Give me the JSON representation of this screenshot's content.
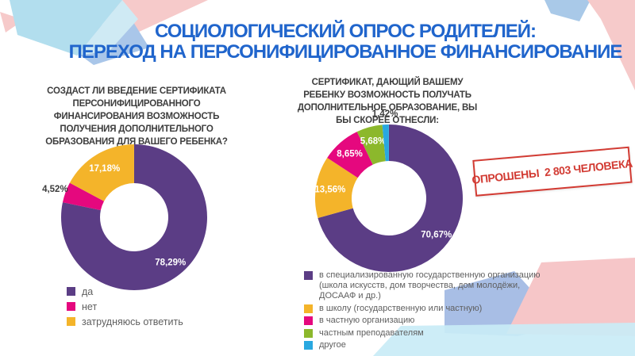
{
  "title": {
    "line1": "СОЦИОЛОГИЧЕСКИЙ ОПРОС РОДИТЕЛЕЙ:",
    "line2": "ПЕРЕХОД НА ПЕРСОНИФИЦИРОВАННОЕ ФИНАНСИРОВАНИЕ"
  },
  "stamp": {
    "text": "ОПРОШЕНЫ  2 803 ЧЕЛОВЕКА"
  },
  "colors": {
    "title_blue": "#2065cc",
    "stamp_red": "#d23b33",
    "question_text": "#3d3d3d",
    "legend_text": "#5f5f5f",
    "purple": "#5b3d85",
    "magenta": "#e5087e",
    "yellow": "#f4b42a",
    "green": "#8cb82c",
    "blue": "#29a8e0"
  },
  "chart_data": [
    {
      "type": "pie",
      "subtype": "donut",
      "title": "СОЗДАСТ ЛИ ВВЕДЕНИЕ СЕРТИФИКАТА ПЕРСОНИФИЦИРОВАННОГО ФИНАНСИРОВАНИЯ ВОЗМОЖНОСТЬ ПОЛУЧЕНИЯ ДОПОЛНИТЕЛЬНОГО ОБРАЗОВАНИЯ ДЛЯ ВАШЕГО РЕБЕНКА?",
      "categories": [
        "да",
        "нет",
        "затрудняюсь ответить"
      ],
      "values": [
        78.29,
        4.52,
        17.18
      ],
      "value_labels": [
        "78,29%",
        "4,52%",
        "17,18%"
      ],
      "colors": [
        "#5b3d85",
        "#e5087e",
        "#f4b42a"
      ],
      "label_placement": [
        "inside",
        "outside",
        "inside"
      ],
      "start_angle_deg": 0,
      "direction": "clockwise",
      "legend_position": "bottom-left"
    },
    {
      "type": "pie",
      "subtype": "donut",
      "title": "СЕРТИФИКАТ, ДАЮЩИЙ ВАШЕМУ РЕБЕНКУ ВОЗМОЖНОСТЬ ПОЛУЧАТЬ ДОПОЛНИТЕЛЬНОЕ ОБРАЗОВАНИЕ, ВЫ БЫ СКОРЕЕ ОТНЕСЛИ:",
      "categories": [
        "в специализированную государственную организацию (школа искусств, дом творчества, дом молодёжи, ДОСААФ и др.)",
        "в школу (государственную или частную)",
        "в частную организацию",
        "частным преподавателям",
        "другое"
      ],
      "values": [
        70.67,
        13.56,
        8.65,
        5.68,
        1.42
      ],
      "value_labels": [
        "70,67%",
        "13,56%",
        "8,65%",
        "5,68%",
        "1,42%"
      ],
      "colors": [
        "#5b3d85",
        "#f4b42a",
        "#e5087e",
        "#8cb82c",
        "#29a8e0"
      ],
      "label_placement": [
        "inside",
        "inside",
        "inside",
        "inside",
        "outside"
      ],
      "start_angle_deg": 0,
      "direction": "clockwise",
      "legend_position": "bottom"
    }
  ]
}
